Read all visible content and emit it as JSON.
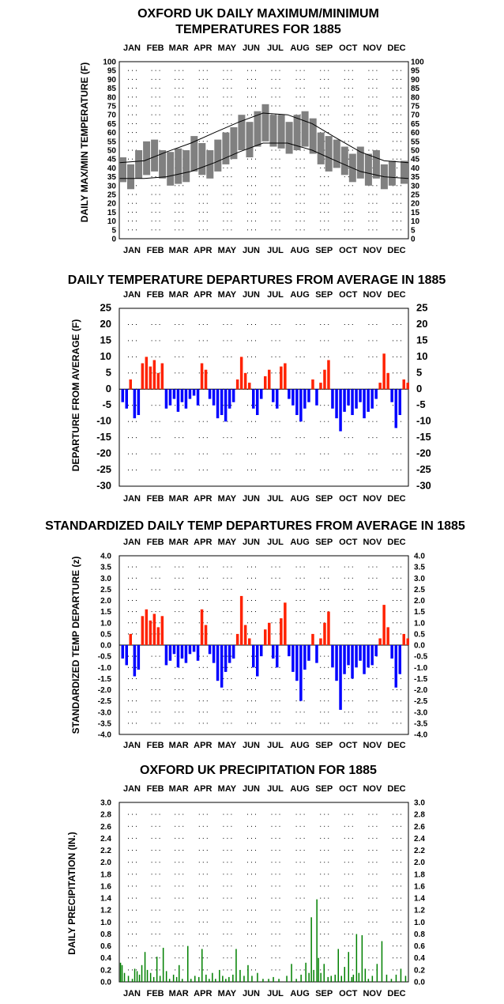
{
  "months": [
    "JAN",
    "FEB",
    "MAR",
    "APR",
    "MAY",
    "JUN",
    "JUL",
    "AUG",
    "SEP",
    "OCT",
    "NOV",
    "DEC"
  ],
  "chart_data": [
    {
      "type": "line",
      "title_lines": [
        "OXFORD UK DAILY MAXIMUM/MINIMUM",
        "TEMPERATURES FOR 1885"
      ],
      "ylabel": "DAILY MAX/MIN TEMPERATURE (F)",
      "ylim": [
        0,
        100
      ],
      "yticks": [
        "0",
        "5",
        "10",
        "15",
        "20",
        "25",
        "30",
        "35",
        "40",
        "45",
        "50",
        "55",
        "60",
        "65",
        "70",
        "75",
        "80",
        "85",
        "90",
        "95",
        "100"
      ],
      "grid": "dotted",
      "normals": {
        "max_day": [
          1,
          32,
          60,
          91,
          121,
          152,
          182,
          213,
          244,
          274,
          305,
          335,
          365
        ],
        "max_values": [
          43,
          44,
          49,
          54,
          60,
          66,
          71,
          70,
          65,
          57,
          49,
          44,
          43
        ],
        "min_day": [
          1,
          32,
          60,
          91,
          121,
          152,
          182,
          213,
          244,
          274,
          305,
          335,
          365
        ],
        "min_values": [
          34,
          34,
          35,
          38,
          43,
          49,
          54,
          54,
          50,
          44,
          38,
          35,
          34
        ]
      },
      "daily_range": {
        "day": [
          5,
          15,
          25,
          35,
          45,
          55,
          65,
          75,
          85,
          95,
          105,
          115,
          125,
          135,
          145,
          155,
          165,
          175,
          185,
          195,
          205,
          215,
          225,
          235,
          245,
          255,
          265,
          275,
          285,
          295,
          305,
          315,
          325,
          335,
          345,
          360
        ],
        "max": [
          46,
          42,
          50,
          55,
          56,
          50,
          49,
          51,
          50,
          58,
          54,
          50,
          56,
          60,
          63,
          70,
          66,
          72,
          76,
          70,
          70,
          66,
          70,
          72,
          68,
          60,
          58,
          56,
          52,
          48,
          52,
          48,
          50,
          42,
          44,
          44
        ],
        "min": [
          32,
          28,
          34,
          36,
          38,
          34,
          30,
          31,
          32,
          38,
          36,
          34,
          38,
          42,
          45,
          50,
          46,
          52,
          55,
          52,
          51,
          48,
          50,
          52,
          48,
          42,
          38,
          40,
          36,
          32,
          34,
          30,
          34,
          28,
          30,
          31
        ]
      }
    },
    {
      "type": "bar",
      "title": "DAILY TEMPERATURE DEPARTURES FROM AVERAGE IN 1885",
      "ylabel": "DEPARTURE FROM AVERAGE (F)",
      "ylim": [
        -30,
        25
      ],
      "yticks": [
        "-30",
        "-25",
        "-20",
        "-15",
        "-10",
        "-5",
        "0",
        "5",
        "10",
        "15",
        "20",
        "25"
      ],
      "colors": {
        "positive": "#ff2200",
        "negative": "#0000ff"
      },
      "anomaly_day": [
        5,
        10,
        15,
        20,
        25,
        30,
        35,
        40,
        45,
        50,
        55,
        60,
        65,
        70,
        75,
        80,
        85,
        90,
        95,
        100,
        105,
        110,
        115,
        120,
        125,
        130,
        135,
        140,
        145,
        150,
        155,
        160,
        165,
        170,
        175,
        180,
        185,
        190,
        195,
        200,
        205,
        210,
        215,
        220,
        225,
        230,
        235,
        240,
        245,
        250,
        255,
        260,
        265,
        270,
        275,
        280,
        285,
        290,
        295,
        300,
        305,
        310,
        315,
        320,
        325,
        330,
        335,
        340,
        345,
        350,
        355,
        360,
        365
      ],
      "anomaly_values": [
        -4,
        -6,
        3,
        -9,
        -8,
        8,
        10,
        7,
        9,
        5,
        8,
        -6,
        -5,
        -3,
        -7,
        -4,
        -6,
        -3,
        -2,
        -5,
        8,
        6,
        -3,
        -5,
        -9,
        -8,
        -10,
        -6,
        -4,
        3,
        10,
        5,
        2,
        -6,
        -8,
        -3,
        4,
        6,
        -4,
        -6,
        7,
        8,
        -3,
        -5,
        -8,
        -10,
        -6,
        -4,
        3,
        -5,
        2,
        6,
        9,
        -6,
        -9,
        -13,
        -7,
        -5,
        -8,
        -6,
        -4,
        -9,
        -7,
        -6,
        -3,
        2,
        11,
        5,
        -4,
        -12,
        -8,
        3,
        2
      ]
    },
    {
      "type": "bar",
      "title": "STANDARDIZED DAILY TEMP DEPARTURES FROM AVERAGE IN 1885",
      "ylabel": "STANDARDIZED TEMP DEPARTURE (z)",
      "ylim": [
        -4,
        4
      ],
      "yticks": [
        "-4.0",
        "-3.5",
        "-3.0",
        "-2.5",
        "-2.0",
        "-1.5",
        "-1.0",
        "-0.5",
        "0.0",
        "0.5",
        "1.0",
        "1.5",
        "2.0",
        "2.5",
        "3.0",
        "3.5",
        "4.0"
      ],
      "colors": {
        "positive": "#ff2200",
        "negative": "#0000ff"
      },
      "anomaly_day": [
        5,
        10,
        15,
        20,
        25,
        30,
        35,
        40,
        45,
        50,
        55,
        60,
        65,
        70,
        75,
        80,
        85,
        90,
        95,
        100,
        105,
        110,
        115,
        120,
        125,
        130,
        135,
        140,
        145,
        150,
        155,
        160,
        165,
        170,
        175,
        180,
        185,
        190,
        195,
        200,
        205,
        210,
        215,
        220,
        225,
        230,
        235,
        240,
        245,
        250,
        255,
        260,
        265,
        270,
        275,
        280,
        285,
        290,
        295,
        300,
        305,
        310,
        315,
        320,
        325,
        330,
        335,
        340,
        345,
        350,
        355,
        360,
        365
      ],
      "anomaly_values": [
        -0.6,
        -0.9,
        0.5,
        -1.4,
        -1.1,
        1.3,
        1.6,
        1.1,
        1.4,
        0.8,
        1.3,
        -0.9,
        -0.7,
        -0.4,
        -1.0,
        -0.6,
        -0.8,
        -0.4,
        -0.3,
        -0.7,
        1.6,
        0.9,
        -0.4,
        -0.8,
        -1.6,
        -1.9,
        -1.2,
        -0.8,
        -0.6,
        0.5,
        2.2,
        0.9,
        0.3,
        -1.0,
        -1.4,
        -0.5,
        0.7,
        1.0,
        -0.6,
        -1.0,
        1.2,
        1.9,
        -0.5,
        -1.2,
        -1.6,
        -2.5,
        -1.1,
        -0.7,
        0.5,
        -0.8,
        0.3,
        1.0,
        1.5,
        -1.0,
        -1.6,
        -2.9,
        -1.3,
        -0.9,
        -1.5,
        -1.0,
        -0.7,
        -1.3,
        -1.0,
        -0.9,
        -0.5,
        0.3,
        1.8,
        0.8,
        -0.6,
        -1.9,
        -1.3,
        0.5,
        0.3
      ]
    },
    {
      "type": "bar",
      "title": "OXFORD UK PRECIPITATION FOR 1885",
      "ylabel": "DAILY PRECIPITATION (IN.)",
      "ylim": [
        0,
        3.0
      ],
      "yticks": [
        "0.0",
        "0.2",
        "0.4",
        "0.6",
        "0.8",
        "1.0",
        "1.2",
        "1.4",
        "1.6",
        "1.8",
        "2.0",
        "2.2",
        "2.4",
        "2.6",
        "2.8",
        "3.0"
      ],
      "colors": {
        "bars": "#008000"
      },
      "day": [
        2,
        4,
        7,
        12,
        17,
        20,
        23,
        26,
        29,
        33,
        36,
        40,
        44,
        48,
        52,
        56,
        60,
        64,
        69,
        73,
        76,
        80,
        87,
        91,
        96,
        101,
        105,
        110,
        114,
        118,
        122,
        127,
        131,
        135,
        139,
        144,
        148,
        153,
        158,
        163,
        168,
        175,
        182,
        189,
        195,
        202,
        212,
        218,
        224,
        230,
        236,
        240,
        243,
        246,
        250,
        252,
        255,
        259,
        264,
        268,
        273,
        277,
        281,
        285,
        290,
        294,
        296,
        300,
        303,
        307,
        311,
        315,
        320,
        326,
        332,
        338,
        344,
        350,
        356,
        362
      ],
      "values": [
        0.32,
        0.28,
        0.15,
        0.1,
        0.05,
        0.22,
        0.18,
        0.12,
        0.28,
        0.5,
        0.2,
        0.15,
        0.08,
        0.42,
        0.1,
        0.57,
        0.18,
        0.05,
        0.12,
        0.08,
        0.28,
        0.05,
        0.6,
        0.05,
        0.1,
        0.08,
        0.55,
        0.12,
        0.05,
        0.15,
        0.05,
        0.2,
        0.1,
        0.05,
        0.08,
        0.12,
        0.55,
        0.2,
        0.1,
        0.28,
        0.1,
        0.15,
        0.05,
        0.05,
        0.08,
        0.05,
        0.1,
        0.3,
        0.05,
        0.12,
        0.32,
        0.15,
        1.08,
        0.2,
        1.38,
        0.4,
        0.15,
        0.3,
        0.08,
        0.1,
        0.12,
        0.55,
        0.1,
        0.25,
        0.5,
        0.08,
        0.12,
        0.8,
        0.15,
        0.78,
        0.22,
        0.05,
        0.1,
        0.3,
        0.68,
        0.12,
        0.05,
        0.12,
        0.22,
        0.1
      ]
    }
  ]
}
